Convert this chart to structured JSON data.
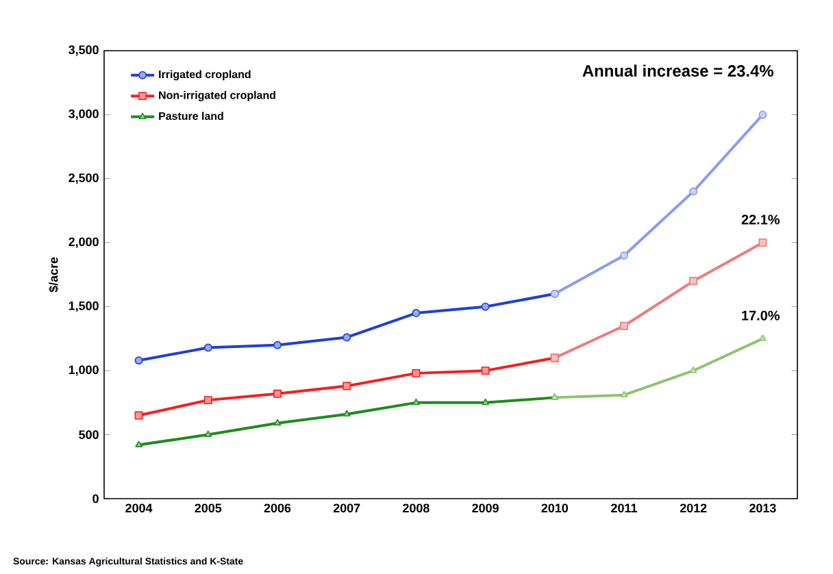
{
  "chart_data": {
    "type": "line",
    "ylabel": "$/acre",
    "categories": [
      "2004",
      "2005",
      "2006",
      "2007",
      "2008",
      "2009",
      "2010",
      "2011",
      "2012",
      "2013"
    ],
    "series": [
      {
        "name": "Irrigated cropland",
        "color": "#1f3fd6",
        "marker": "circle",
        "values": [
          1080,
          1180,
          1200,
          1260,
          1450,
          1500,
          1600,
          null,
          null,
          null
        ]
      },
      {
        "name": "Non-irrigated cropland",
        "color": "#ff1a1a",
        "marker": "square",
        "values": [
          650,
          770,
          820,
          880,
          980,
          1000,
          1100,
          null,
          null,
          null
        ]
      },
      {
        "name": "Pasture land",
        "color": "#1e8c1e",
        "marker": "triangle",
        "values": [
          420,
          500,
          590,
          660,
          750,
          750,
          790,
          null,
          null,
          null
        ]
      },
      {
        "color": "#8a9cf2",
        "marker": "circle",
        "values": [
          null,
          null,
          null,
          null,
          null,
          null,
          1600,
          1900,
          2400,
          3000
        ]
      },
      {
        "color": "#f07a7a",
        "marker": "square",
        "values": [
          null,
          null,
          null,
          null,
          null,
          null,
          1100,
          1350,
          1700,
          2000
        ]
      },
      {
        "color": "#8cc46e",
        "marker": "triangle",
        "values": [
          null,
          null,
          null,
          null,
          null,
          null,
          790,
          810,
          1000,
          1250
        ]
      }
    ],
    "ylim": [
      0,
      3500
    ],
    "yticks": [
      0,
      500,
      {
        "value": 1000,
        "label": "1,000"
      },
      {
        "value": 1500,
        "label": "1,500"
      },
      {
        "value": 2000,
        "label": "2,000"
      },
      {
        "value": 2500,
        "label": "2,500"
      },
      {
        "value": 3000,
        "label": "3,000"
      },
      {
        "value": 3500,
        "label": "3,500"
      }
    ],
    "grid": false,
    "legend": "top left",
    "annotations": [
      "Annual increase = 23.4%",
      {
        "text": "22.1%",
        "x": "2013",
        "y": 2000
      },
      {
        "text": "17.0%",
        "x": "2013",
        "y": 1250
      },
      "Source:  Kansas Agricultural Statistics and K-State"
    ]
  }
}
